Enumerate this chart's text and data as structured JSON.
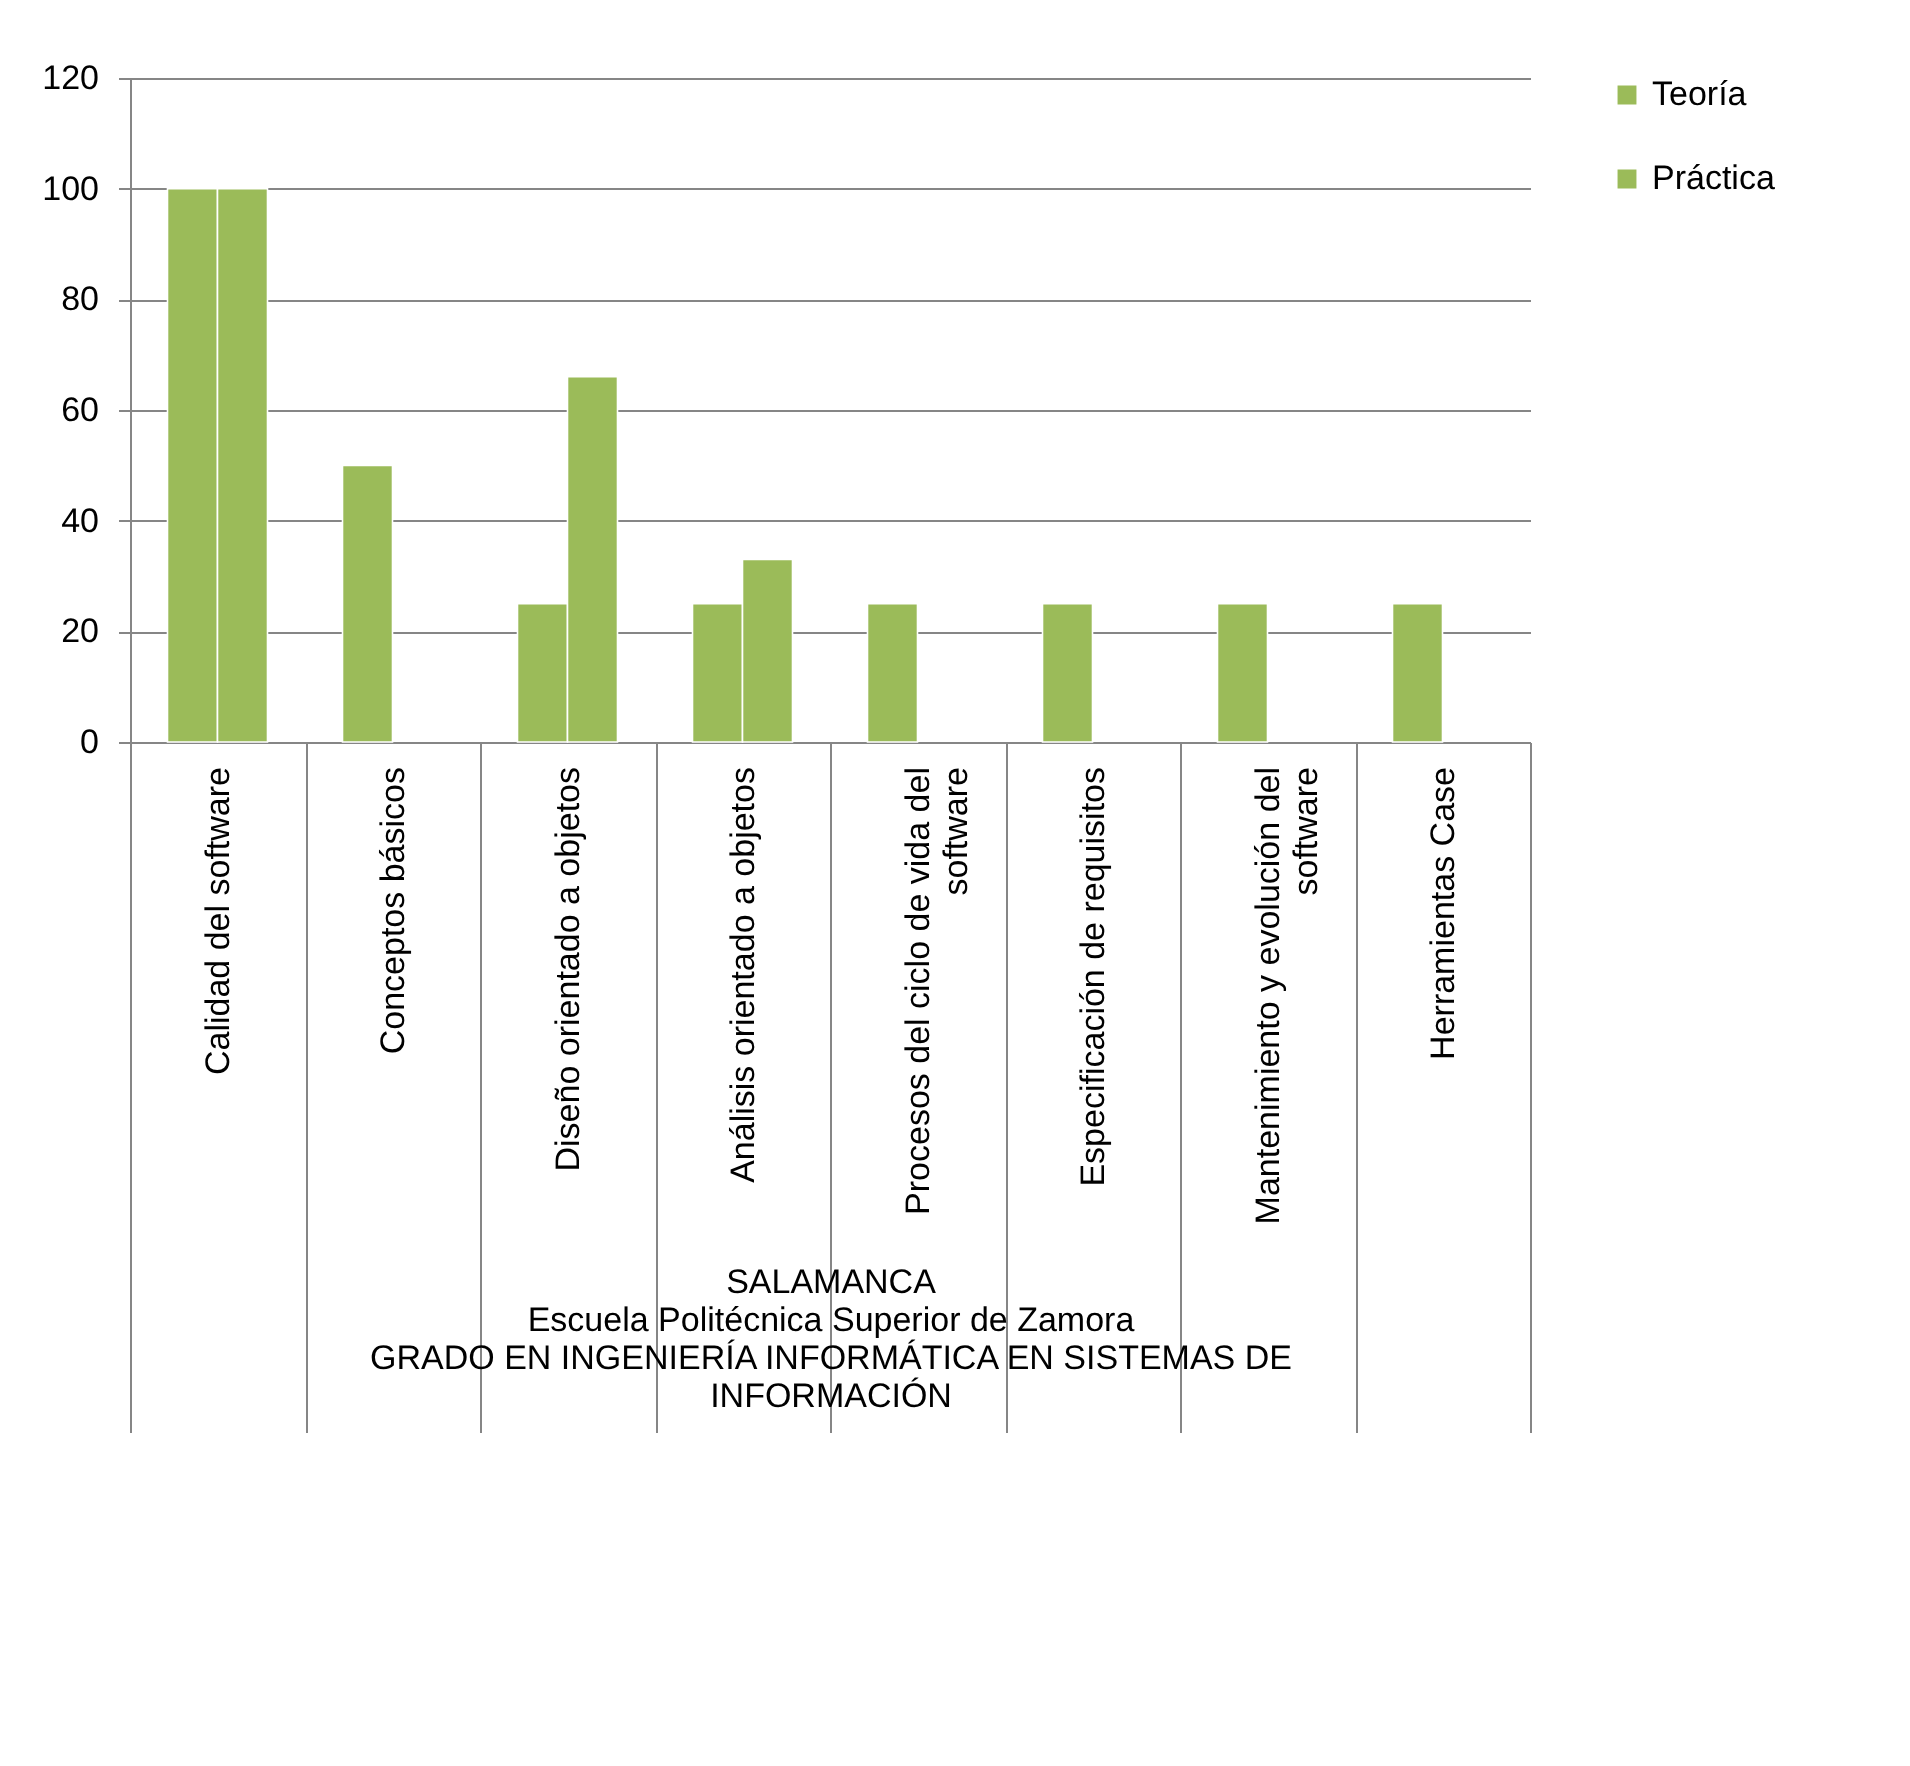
{
  "chart_data": {
    "type": "bar",
    "xlabel": "SALAMANCA\nEscuela Politécnica Superior de Zamora\nGRADO EN INGENIERÍA INFORMÁTICA EN SISTEMAS DE INFORMACIÓN",
    "categories": [
      "Calidad del software",
      "Conceptos básicos",
      "Diseño orientado a objetos",
      "Análisis orientado a objetos",
      "Procesos del ciclo de vida del software",
      "Especificación de requisitos",
      "Mantenimiento y evolución del software",
      "Herramientas Case"
    ],
    "series": [
      {
        "name": "Teoría",
        "color": "#9bbb59",
        "values": [
          100,
          50,
          25,
          25,
          25,
          25,
          25,
          25
        ]
      },
      {
        "name": "Práctica",
        "color": "#9bbb59",
        "values": [
          100,
          null,
          66,
          33,
          null,
          null,
          null,
          null
        ]
      }
    ],
    "ylim": [
      0,
      120
    ],
    "yticks": [
      0,
      20,
      40,
      60,
      80,
      100,
      120
    ],
    "grid": "y",
    "legend": "right"
  }
}
